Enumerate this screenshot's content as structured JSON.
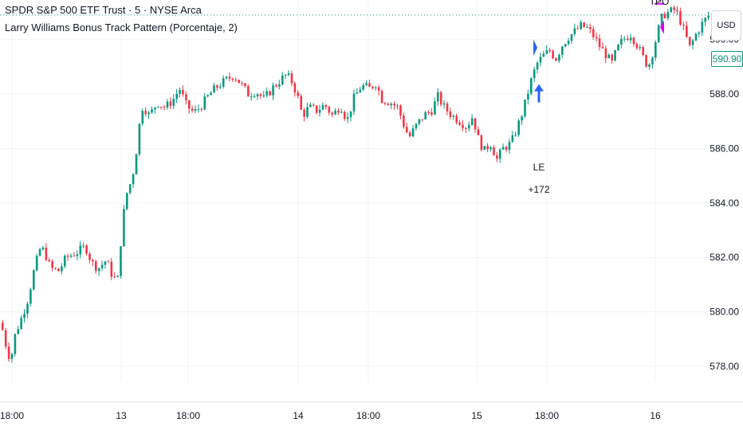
{
  "header": {
    "symbol_title": "SPDR S&P 500 ETF Trust · 5 · NYSE Arca",
    "indicator_label": "Larry Williams Bonus Track Pattern (Porcentaje, 2)"
  },
  "currency_button": "USD",
  "last_price_label": "590.90",
  "colors": {
    "up": "#089981",
    "down": "#f23645",
    "grid": "#f0f3fa",
    "long_arrow": "#2962ff",
    "exit_arrow": "#d500f9"
  },
  "chart_data": {
    "type": "candlestick",
    "title": "",
    "xlabel": "",
    "ylabel": "",
    "y_ticks": [
      578.0,
      580.0,
      582.0,
      584.0,
      586.0,
      588.0,
      590.0
    ],
    "ylim": [
      577.2,
      591.8
    ],
    "x_ticks": [
      "18:00",
      "13",
      "18:00",
      "14",
      "18:00",
      "15",
      "18:00",
      "16"
    ],
    "grid": true,
    "legend": "top-left",
    "series_path": [
      [
        0,
        579.6
      ],
      [
        6,
        578.8
      ],
      [
        12,
        578.2
      ],
      [
        18,
        579.2
      ],
      [
        26,
        579.8
      ],
      [
        34,
        580.5
      ],
      [
        42,
        581.6
      ],
      [
        50,
        582.4
      ],
      [
        56,
        582.1
      ],
      [
        62,
        581.6
      ],
      [
        72,
        581.5
      ],
      [
        82,
        582.0
      ],
      [
        96,
        582.2
      ],
      [
        106,
        582.4
      ],
      [
        114,
        581.8
      ],
      [
        122,
        581.6
      ],
      [
        132,
        581.9
      ],
      [
        140,
        581.3
      ],
      [
        146,
        581.1
      ],
      [
        150,
        582.5
      ],
      [
        156,
        584.2
      ],
      [
        162,
        584.7
      ],
      [
        168,
        585.4
      ],
      [
        172,
        586.6
      ],
      [
        178,
        587.6
      ],
      [
        186,
        587.2
      ],
      [
        196,
        587.7
      ],
      [
        206,
        587.5
      ],
      [
        216,
        587.8
      ],
      [
        224,
        588.2
      ],
      [
        232,
        587.6
      ],
      [
        242,
        587.3
      ],
      [
        252,
        587.6
      ],
      [
        262,
        588.0
      ],
      [
        272,
        588.3
      ],
      [
        282,
        588.5
      ],
      [
        292,
        588.7
      ],
      [
        300,
        588.4
      ],
      [
        310,
        588.0
      ],
      [
        320,
        588.1
      ],
      [
        330,
        587.8
      ],
      [
        340,
        588.2
      ],
      [
        350,
        588.5
      ],
      [
        358,
        588.7
      ],
      [
        366,
        588.4
      ],
      [
        372,
        587.9
      ],
      [
        378,
        587.2
      ],
      [
        386,
        587.5
      ],
      [
        396,
        587.4
      ],
      [
        406,
        587.6
      ],
      [
        416,
        587.2
      ],
      [
        426,
        587.6
      ],
      [
        434,
        587.0
      ],
      [
        442,
        587.8
      ],
      [
        452,
        588.3
      ],
      [
        462,
        588.2
      ],
      [
        470,
        588.4
      ],
      [
        478,
        587.8
      ],
      [
        488,
        587.7
      ],
      [
        498,
        587.5
      ],
      [
        506,
        586.8
      ],
      [
        512,
        586.4
      ],
      [
        520,
        586.8
      ],
      [
        530,
        587.2
      ],
      [
        540,
        587.4
      ],
      [
        548,
        587.9
      ],
      [
        556,
        587.5
      ],
      [
        566,
        587.2
      ],
      [
        576,
        587.0
      ],
      [
        584,
        586.8
      ],
      [
        592,
        587.2
      ],
      [
        598,
        586.4
      ],
      [
        606,
        585.9
      ],
      [
        614,
        586.2
      ],
      [
        622,
        585.6
      ],
      [
        630,
        586.0
      ],
      [
        640,
        586.2
      ],
      [
        648,
        586.8
      ],
      [
        656,
        587.5
      ],
      [
        664,
        588.4
      ],
      [
        672,
        589.1
      ],
      [
        680,
        589.4
      ],
      [
        688,
        589.6
      ],
      [
        696,
        589.3
      ],
      [
        704,
        589.8
      ],
      [
        712,
        590.1
      ],
      [
        720,
        590.3
      ],
      [
        728,
        590.5
      ],
      [
        736,
        590.4
      ],
      [
        744,
        590.1
      ],
      [
        752,
        589.7
      ],
      [
        760,
        589.4
      ],
      [
        766,
        589.1
      ],
      [
        772,
        589.6
      ],
      [
        780,
        590.0
      ],
      [
        790,
        590.2
      ],
      [
        798,
        589.8
      ],
      [
        806,
        589.3
      ],
      [
        812,
        589.0
      ],
      [
        818,
        589.6
      ],
      [
        824,
        590.3
      ],
      [
        830,
        590.9
      ],
      [
        838,
        591.0
      ],
      [
        846,
        591.1
      ],
      [
        852,
        590.7
      ],
      [
        858,
        590.2
      ],
      [
        864,
        589.7
      ],
      [
        872,
        590.2
      ],
      [
        880,
        590.6
      ],
      [
        888,
        590.9
      ]
    ],
    "annotations": [
      {
        "type": "long_entry",
        "label": "LE",
        "sublabel": "+172",
        "price": 588.1
      },
      {
        "type": "exit",
        "label": "TPO",
        "price": 591.4
      }
    ]
  }
}
